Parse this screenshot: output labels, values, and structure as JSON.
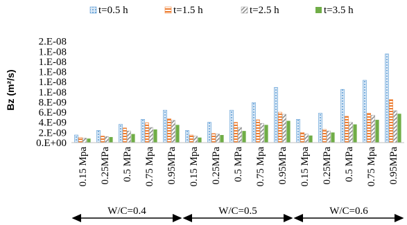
{
  "chart_data": {
    "type": "bar",
    "ylabel": "Bz (m²/s)",
    "xlabel": "",
    "ylim": [
      0,
      2.2e-08
    ],
    "y_ticks": [
      {
        "value": 0,
        "label": "0.E+00"
      },
      {
        "value": 2e-09,
        "label": "2.E-09"
      },
      {
        "value": 4e-09,
        "label": "4.E-09"
      },
      {
        "value": 6e-09,
        "label": "6.E-09"
      },
      {
        "value": 8e-09,
        "label": "8.E-09"
      },
      {
        "value": 1e-08,
        "label": "1.E-08"
      },
      {
        "value": 1.2e-08,
        "label": "1.E-08"
      },
      {
        "value": 1.4e-08,
        "label": "1.E-08"
      },
      {
        "value": 1.6e-08,
        "label": "1.E-08"
      },
      {
        "value": 1.8e-08,
        "label": "1.E-08"
      },
      {
        "value": 2e-08,
        "label": "2.E-08"
      }
    ],
    "categories": [
      "0.15 Mpa",
      "0.25MPa",
      "0.5 MPa",
      "0.75 Mpa",
      "0.95MPa",
      "0.15 Mpa",
      "0.25MPa",
      "0.5 MPa",
      "0.75 Mpa",
      "0.95MPa",
      "0.15 Mpa",
      "0.25MPa",
      "0.5 MPa",
      "0.75 Mpa",
      "0.95MPa"
    ],
    "groups": [
      {
        "label": "W/C=0.4",
        "start": 0,
        "end": 4
      },
      {
        "label": "W/C=0.5",
        "start": 5,
        "end": 9
      },
      {
        "label": "W/C=0.6",
        "start": 10,
        "end": 14
      }
    ],
    "legend_position": "top",
    "series": [
      {
        "name": "t=0.5 h",
        "color": "#5b9bd5",
        "pattern": "dots",
        "values": [
          1.5e-09,
          2.4e-09,
          3.6e-09,
          4.6e-09,
          6.4e-09,
          2.4e-09,
          4e-09,
          6.4e-09,
          7.9e-09,
          1.09e-08,
          4.6e-09,
          5.8e-09,
          1.05e-08,
          1.23e-08,
          1.75e-08
        ]
      },
      {
        "name": "t=1.5 h",
        "color": "#ed7d31",
        "pattern": "stripes",
        "values": [
          1e-09,
          1.3e-09,
          2.9e-09,
          3.9e-09,
          4.7e-09,
          1.5e-09,
          1.8e-09,
          4e-09,
          4.5e-09,
          6e-09,
          2e-09,
          2.6e-09,
          5.2e-09,
          5.8e-09,
          8.5e-09
        ]
      },
      {
        "name": "t=2.5 h",
        "color": "#a5a5a5",
        "pattern": "hatch",
        "values": [
          9e-10,
          1.2e-09,
          2.3e-09,
          3e-09,
          4.4e-09,
          1.3e-09,
          1.7e-09,
          3e-09,
          3.8e-09,
          5.6e-09,
          1.7e-09,
          2.3e-09,
          4e-09,
          5.4e-09,
          6.3e-09
        ]
      },
      {
        "name": "t=3.5 h",
        "color": "#70ad47",
        "pattern": "solid",
        "values": [
          8e-10,
          1.1e-09,
          1.7e-09,
          2.6e-09,
          3.5e-09,
          1e-09,
          1.5e-09,
          2.3e-09,
          3.5e-09,
          4.3e-09,
          1.4e-09,
          2e-09,
          3.6e-09,
          4.5e-09,
          5.7e-09
        ]
      }
    ]
  }
}
